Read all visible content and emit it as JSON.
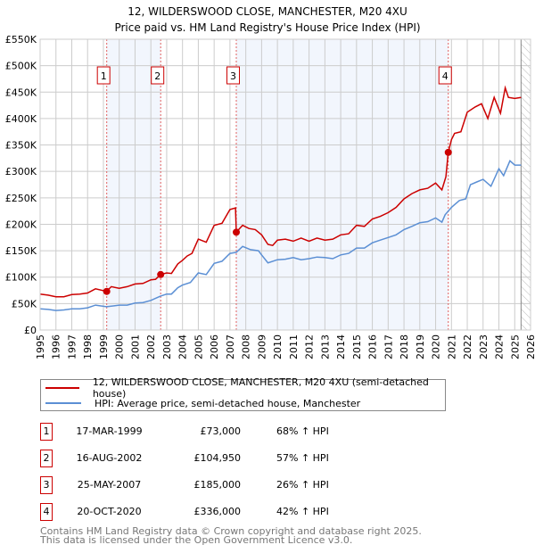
{
  "chart_data": {
    "type": "line",
    "title": "12, WILDERSWOOD CLOSE, MANCHESTER, M20 4XU",
    "subtitle": "Price paid vs. HM Land Registry's House Price Index (HPI)",
    "xlim": [
      1995,
      2026
    ],
    "ylim": [
      0,
      550000
    ],
    "y_ticks": [
      0,
      50000,
      100000,
      150000,
      200000,
      250000,
      300000,
      350000,
      400000,
      450000,
      500000,
      550000
    ],
    "y_tick_labels": [
      "£0",
      "£50K",
      "£100K",
      "£150K",
      "£200K",
      "£250K",
      "£300K",
      "£350K",
      "£400K",
      "£450K",
      "£500K",
      "£550K"
    ],
    "x_ticks": [
      1995,
      1996,
      1997,
      1998,
      1999,
      2000,
      2001,
      2002,
      2003,
      2004,
      2005,
      2006,
      2007,
      2008,
      2009,
      2010,
      2011,
      2012,
      2013,
      2014,
      2015,
      2016,
      2017,
      2018,
      2019,
      2020,
      2021,
      2022,
      2023,
      2024,
      2025,
      2026
    ],
    "grid": true,
    "series": [
      {
        "name": "12, WILDERSWOOD CLOSE, MANCHESTER, M20 4XU (semi-detached house)",
        "color": "#cc0000",
        "points": [
          [
            1995,
            68
          ],
          [
            1995.5,
            66
          ],
          [
            1996,
            63
          ],
          [
            1996.5,
            63
          ],
          [
            1997,
            67
          ],
          [
            1997.5,
            68
          ],
          [
            1998,
            70
          ],
          [
            1998.5,
            78
          ],
          [
            1999.2,
            73
          ],
          [
            1999.5,
            82
          ],
          [
            2000,
            79
          ],
          [
            2000.5,
            82
          ],
          [
            2001,
            87
          ],
          [
            2001.5,
            88
          ],
          [
            2002,
            95
          ],
          [
            2002.3,
            96
          ],
          [
            2002.62,
            105
          ],
          [
            2003,
            108
          ],
          [
            2003.3,
            107
          ],
          [
            2003.7,
            125
          ],
          [
            2004,
            132
          ],
          [
            2004.3,
            140
          ],
          [
            2004.6,
            145
          ],
          [
            2005,
            172
          ],
          [
            2005.5,
            166
          ],
          [
            2006,
            198
          ],
          [
            2006.5,
            202
          ],
          [
            2007,
            228
          ],
          [
            2007.35,
            231
          ],
          [
            2007.4,
            185
          ],
          [
            2007.8,
            198
          ],
          [
            2008.2,
            192
          ],
          [
            2008.6,
            190
          ],
          [
            2009,
            180
          ],
          [
            2009.4,
            162
          ],
          [
            2009.7,
            160
          ],
          [
            2010,
            170
          ],
          [
            2010.5,
            172
          ],
          [
            2011,
            168
          ],
          [
            2011.5,
            174
          ],
          [
            2012,
            168
          ],
          [
            2012.5,
            174
          ],
          [
            2013,
            170
          ],
          [
            2013.5,
            172
          ],
          [
            2014,
            180
          ],
          [
            2014.5,
            182
          ],
          [
            2015,
            198
          ],
          [
            2015.5,
            196
          ],
          [
            2016,
            210
          ],
          [
            2016.5,
            215
          ],
          [
            2017,
            222
          ],
          [
            2017.5,
            232
          ],
          [
            2018,
            248
          ],
          [
            2018.5,
            258
          ],
          [
            2019,
            265
          ],
          [
            2019.5,
            268
          ],
          [
            2020,
            278
          ],
          [
            2020.4,
            265
          ],
          [
            2020.65,
            290
          ],
          [
            2020.8,
            336
          ],
          [
            2021,
            360
          ],
          [
            2021.2,
            372
          ],
          [
            2021.6,
            375
          ],
          [
            2022,
            412
          ],
          [
            2022.5,
            422
          ],
          [
            2022.9,
            428
          ],
          [
            2023.3,
            400
          ],
          [
            2023.7,
            440
          ],
          [
            2024.1,
            410
          ],
          [
            2024.4,
            458
          ],
          [
            2024.6,
            440
          ],
          [
            2025,
            438
          ],
          [
            2025.4,
            440
          ]
        ]
      },
      {
        "name": "HPI: Average price, semi-detached house, Manchester",
        "color": "#5b8fd4",
        "points": [
          [
            1995,
            40
          ],
          [
            1995.5,
            39
          ],
          [
            1996,
            37
          ],
          [
            1996.5,
            38
          ],
          [
            1997,
            40
          ],
          [
            1997.5,
            40
          ],
          [
            1998,
            42
          ],
          [
            1998.5,
            47
          ],
          [
            1999.2,
            44
          ],
          [
            2000,
            47
          ],
          [
            2000.5,
            47
          ],
          [
            2001,
            51
          ],
          [
            2001.5,
            52
          ],
          [
            2002,
            56
          ],
          [
            2002.6,
            64
          ],
          [
            2003,
            68
          ],
          [
            2003.3,
            68
          ],
          [
            2003.7,
            80
          ],
          [
            2004,
            85
          ],
          [
            2004.5,
            90
          ],
          [
            2005,
            108
          ],
          [
            2005.5,
            105
          ],
          [
            2006,
            126
          ],
          [
            2006.5,
            130
          ],
          [
            2007,
            145
          ],
          [
            2007.4,
            147
          ],
          [
            2007.8,
            158
          ],
          [
            2008.3,
            152
          ],
          [
            2008.8,
            150
          ],
          [
            2009,
            142
          ],
          [
            2009.4,
            127
          ],
          [
            2010,
            133
          ],
          [
            2010.5,
            134
          ],
          [
            2011,
            137
          ],
          [
            2011.5,
            133
          ],
          [
            2012,
            135
          ],
          [
            2012.5,
            138
          ],
          [
            2013,
            137
          ],
          [
            2013.5,
            135
          ],
          [
            2014,
            142
          ],
          [
            2014.5,
            145
          ],
          [
            2015,
            155
          ],
          [
            2015.5,
            155
          ],
          [
            2016,
            165
          ],
          [
            2016.5,
            170
          ],
          [
            2017,
            175
          ],
          [
            2017.5,
            180
          ],
          [
            2018,
            190
          ],
          [
            2018.5,
            196
          ],
          [
            2019,
            203
          ],
          [
            2019.5,
            205
          ],
          [
            2020,
            212
          ],
          [
            2020.4,
            204
          ],
          [
            2020.6,
            218
          ],
          [
            2021,
            232
          ],
          [
            2021.5,
            245
          ],
          [
            2021.9,
            248
          ],
          [
            2022.2,
            275
          ],
          [
            2022.6,
            280
          ],
          [
            2023,
            285
          ],
          [
            2023.5,
            272
          ],
          [
            2024,
            305
          ],
          [
            2024.3,
            292
          ],
          [
            2024.7,
            320
          ],
          [
            2025,
            312
          ],
          [
            2025.4,
            312
          ]
        ]
      }
    ],
    "value_unit": "thousands GBP",
    "shaded_ranges": [
      [
        1999.21,
        2002.62
      ],
      [
        2007.4,
        2020.8
      ]
    ],
    "forecast_hatch_from": 2025.4,
    "sales": [
      {
        "label": "1",
        "x": 1999.21,
        "price": 73
      },
      {
        "label": "2",
        "x": 2002.62,
        "price": 104.95
      },
      {
        "label": "3",
        "x": 2007.4,
        "price": 185
      },
      {
        "label": "4",
        "x": 2020.8,
        "price": 336
      }
    ]
  },
  "legend": {
    "property": "12, WILDERSWOOD CLOSE, MANCHESTER, M20 4XU (semi-detached house)",
    "hpi": "HPI: Average price, semi-detached house, Manchester"
  },
  "table": [
    {
      "num": "1",
      "date": "17-MAR-1999",
      "price": "£73,000",
      "hpi": "68% ↑ HPI"
    },
    {
      "num": "2",
      "date": "16-AUG-2002",
      "price": "£104,950",
      "hpi": "57% ↑ HPI"
    },
    {
      "num": "3",
      "date": "25-MAY-2007",
      "price": "£185,000",
      "hpi": "26% ↑ HPI"
    },
    {
      "num": "4",
      "date": "20-OCT-2020",
      "price": "£336,000",
      "hpi": "42% ↑ HPI"
    }
  ],
  "footer": {
    "line1": "Contains HM Land Registry data © Crown copyright and database right 2025.",
    "line2": "This data is licensed under the Open Government Licence v3.0."
  }
}
